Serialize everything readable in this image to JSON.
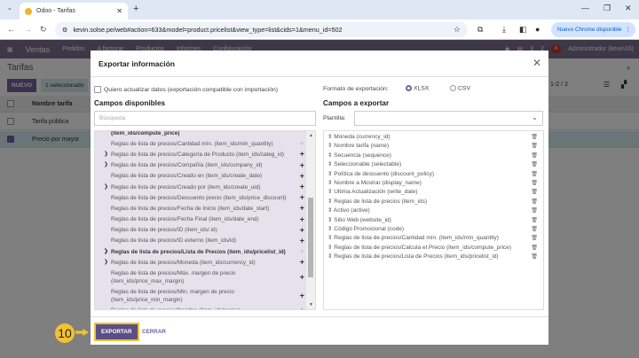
{
  "browser": {
    "tab_title": "Odoo - Tarifas",
    "url": "kevin.solse.pe/web#action=633&model=product.pricelist&view_type=list&cids=1&menu_id=502",
    "update_button": "Nuevo Chrome disponible"
  },
  "odoo": {
    "app": "Ventas",
    "menu": [
      "Pedidos",
      "A facturar",
      "Productos",
      "Informes",
      "Configuración"
    ],
    "user": "Administrador (kevin16)",
    "user_initial": "A",
    "badges": [
      "3",
      "2"
    ],
    "page_title": "Tarifas",
    "new_button": "NUEVO",
    "selected": "1 seleccionado",
    "pager": "1-2 / 2",
    "column": "Nombre tarifa",
    "rows": [
      {
        "name": "Tarifa pública",
        "checked": false
      },
      {
        "name": "Precio por mayor",
        "checked": true
      }
    ]
  },
  "modal": {
    "title": "Exportar información",
    "compat_label": "Quiero actualizar datos (exportación compatible con importación)",
    "format_label": "Formato de exportación:",
    "formats": [
      {
        "label": "XLSX",
        "selected": true
      },
      {
        "label": "CSV",
        "selected": false
      }
    ],
    "available_title": "Campos disponibles",
    "search_placeholder": "Búsqueda",
    "export_title": "Campos a exportar",
    "template_label": "Plantilla:",
    "available": [
      {
        "label": "(item_ids/compute_price)",
        "bold": true,
        "expand": false,
        "added": true
      },
      {
        "label": "Reglas de lista de precios/Cantidad mín. (item_ids/min_quantity)",
        "expand": false,
        "added": true
      },
      {
        "label": "Reglas de lista de precios/Categoría de Producto (item_ids/categ_id)",
        "expand": true
      },
      {
        "label": "Reglas de lista de precios/Compañía (item_ids/company_id)",
        "expand": true
      },
      {
        "label": "Reglas de lista de precios/Creado en (item_ids/create_date)"
      },
      {
        "label": "Reglas de lista de precios/Creado por (item_ids/create_uid)",
        "expand": true
      },
      {
        "label": "Reglas de lista de precios/Descuento precio (item_ids/price_discount)"
      },
      {
        "label": "Reglas de lista de precios/Fecha de Inicio (item_ids/date_start)"
      },
      {
        "label": "Reglas de lista de precios/Fecha Final (item_ids/date_end)"
      },
      {
        "label": "Reglas de lista de precios/ID (item_ids/.id)"
      },
      {
        "label": "Reglas de lista de precios/ID externo (item_ids/id)"
      },
      {
        "label": "Reglas de lista de precios/Lista de Precios (item_ids/pricelist_id)",
        "bold": true,
        "expand": true,
        "added": true
      },
      {
        "label": "Reglas de lista de precios/Moneda (item_ids/currency_id)",
        "expand": true
      },
      {
        "label": "Reglas de lista de precios/Máx. margen de precio (item_ids/price_max_margin)"
      },
      {
        "label": "Reglas de lista de precios/Mín. margen de precio (item_ids/price_min_margin)"
      },
      {
        "label": "Reglas de lista de precios/Nombre (item_ids/name)"
      },
      {
        "label": "Reglas de lista de precios/Nombre a Mostrar"
      }
    ],
    "export_fields": [
      "Moneda (currency_id)",
      "Nombre tarifa (name)",
      "Secuencia (sequence)",
      "Seleccionable (selectable)",
      "Política de descuento (discount_policy)",
      "Nombre a Mostrar (display_name)",
      "Ultima Actualización (write_date)",
      "Reglas de lista de precios (item_ids)",
      "Activo (active)",
      "Sitio Web (website_id)",
      "Código Promocional (code)",
      "Reglas de lista de precios/Cantidad mín. (item_ids/min_quantity)",
      "Reglas de lista de precios/Calcula el Precio (item_ids/compute_price)",
      "Reglas de lista de precios/Lista de Precios (item_ids/pricelist_id)"
    ],
    "export_button": "EXPORTAR",
    "close_button": "CERRAR"
  },
  "annotation": {
    "step": "10",
    "color": "#f2c230"
  }
}
